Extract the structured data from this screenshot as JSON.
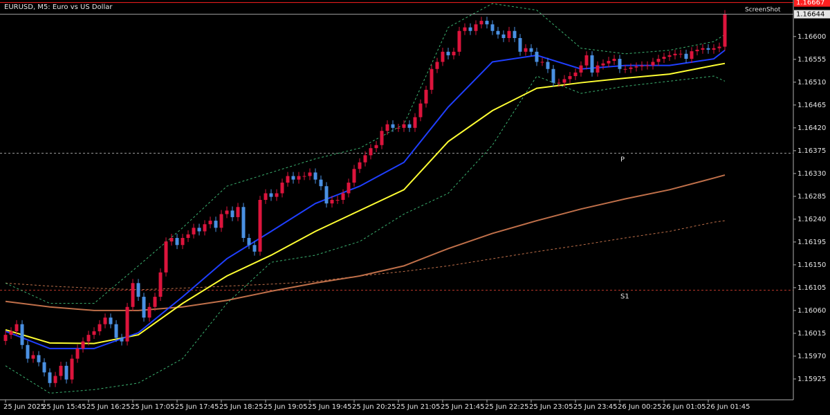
{
  "chart_data": {
    "type": "candlestick",
    "title": "EURUSD, M5:  Euro vs US Dollar",
    "watermark": "ScreenShot",
    "up_color": "#dc143c",
    "down_color": "#4a90e2",
    "ylim": [
      1.15884,
      1.16672
    ],
    "yticks": [
      {
        "value": 1.166,
        "label": "1.16600"
      },
      1.16555,
      {
        "value": 1.1651,
        "label": "1.16510"
      },
      1.16465,
      {
        "value": 1.1642,
        "label": "1.16420"
      },
      1.16375,
      {
        "value": 1.1633,
        "label": "1.16330"
      },
      1.16285,
      {
        "value": 1.1624,
        "label": "1.16240"
      },
      1.16195,
      {
        "value": 1.1615,
        "label": "1.16150"
      },
      1.16105,
      {
        "value": 1.1606,
        "label": "1.16060"
      },
      1.16015,
      {
        "value": 1.1597,
        "label": "1.15970"
      },
      1.15925
    ],
    "last_price": 1.16644,
    "ask_price": 1.16667,
    "levels": [
      {
        "label": "P",
        "value": 1.1637,
        "color": "#9a9a9a"
      },
      {
        "label": "S1",
        "value": 1.161,
        "color": "#c0392b"
      }
    ],
    "categories": [
      "25 Jun 2025",
      null,
      null,
      null,
      null,
      null,
      null,
      "25 Jun 15:45",
      null,
      null,
      null,
      null,
      null,
      null,
      null,
      "25 Jun 16:25",
      null,
      null,
      null,
      null,
      null,
      null,
      null,
      "25 Jun 17:05",
      null,
      null,
      null,
      null,
      null,
      null,
      null,
      "25 Jun 17:45",
      null,
      null,
      null,
      null,
      null,
      null,
      null,
      "25 Jun 18:25",
      null,
      null,
      null,
      null,
      null,
      null,
      null,
      "25 Jun 19:05",
      null,
      null,
      null,
      null,
      null,
      null,
      null,
      "25 Jun 19:45",
      null,
      null,
      null,
      null,
      null,
      null,
      null,
      "25 Jun 20:25",
      null,
      null,
      null,
      null,
      null,
      null,
      null,
      "25 Jun 21:05",
      null,
      null,
      null,
      null,
      null,
      null,
      null,
      "25 Jun 21:45",
      null,
      null,
      null,
      null,
      null,
      null,
      null,
      "25 Jun 22:25",
      null,
      null,
      null,
      null,
      null,
      null,
      null,
      "25 Jun 23:05",
      null,
      null,
      null,
      null,
      null,
      null,
      null,
      "25 Jun 23:45",
      null,
      null,
      null,
      null,
      null,
      null,
      null,
      "26 Jun 00:25",
      null,
      null,
      null,
      null,
      null,
      null,
      null,
      "26 Jun 01:05",
      null,
      null,
      null,
      null,
      null,
      null,
      null,
      "26 Jun 01:45",
      null,
      null,
      null
    ],
    "open": [
      1.16,
      1.16012,
      1.16019,
      1.16033,
      1.15992,
      1.15965,
      1.15972,
      1.15958,
      1.15938,
      1.15917,
      1.15931,
      1.15951,
      1.15924,
      1.15965,
      1.15985,
      1.15999,
      1.16012,
      1.16019,
      1.16033,
      1.16046,
      1.16033,
      1.16006,
      1.15999,
      1.16067,
      1.16114,
      1.16087,
      1.16046,
      1.16067,
      1.16087,
      1.16135,
      1.16196,
      1.16203,
      1.16189,
      1.16203,
      1.1621,
      1.16223,
      1.16216,
      1.1623,
      1.16237,
      1.16223,
      1.1625,
      1.16257,
      1.16244,
      1.16264,
      1.16203,
      1.16189,
      1.16176,
      1.16278,
      1.16291,
      1.16284,
      1.16291,
      1.16312,
      1.16325,
      1.16318,
      1.16325,
      1.16325,
      1.16332,
      1.16318,
      1.16305,
      1.16271,
      1.16278,
      1.16278,
      1.16291,
      1.16312,
      1.16339,
      1.16352,
      1.16366,
      1.1638,
      1.16386,
      1.16414,
      1.16427,
      1.1642,
      1.1642,
      1.16427,
      1.1642,
      1.16441,
      1.16468,
      1.16495,
      1.16536,
      1.1655,
      1.1657,
      1.16563,
      1.1657,
      1.16611,
      1.16618,
      1.16611,
      1.16624,
      1.16631,
      1.16624,
      1.16611,
      1.16604,
      1.16597,
      1.16611,
      1.16597,
      1.1657,
      1.16577,
      1.1657,
      1.1655,
      1.1655,
      1.16536,
      1.16509,
      1.16509,
      1.16516,
      1.16522,
      1.16529,
      1.16543,
      1.16563,
      1.16529,
      1.16543,
      1.16547,
      1.16552,
      1.16556,
      1.16536,
      1.16536,
      1.16539,
      1.16541,
      1.16543,
      1.16543,
      1.1655,
      1.16556,
      1.1656,
      1.16563,
      1.16566,
      1.16566,
      1.16556,
      1.16571,
      1.16574,
      1.16577,
      1.16574,
      1.16577,
      1.1658
    ],
    "high": [
      1.1602,
      1.16027,
      1.16041,
      1.16041,
      1.16,
      1.1598,
      1.1598,
      1.15966,
      1.15946,
      1.15939,
      1.15959,
      1.15959,
      1.15973,
      1.15993,
      1.16007,
      1.1602,
      1.16027,
      1.16041,
      1.16054,
      1.16054,
      1.16041,
      1.16014,
      1.16075,
      1.16122,
      1.16122,
      1.16095,
      1.16075,
      1.16095,
      1.16143,
      1.16204,
      1.16211,
      1.16211,
      1.16211,
      1.16218,
      1.16231,
      1.16231,
      1.16238,
      1.16245,
      1.16245,
      1.16258,
      1.16265,
      1.16265,
      1.16272,
      1.16272,
      1.16211,
      1.16197,
      1.16286,
      1.16299,
      1.16299,
      1.16299,
      1.1632,
      1.16333,
      1.16333,
      1.16333,
      1.16333,
      1.1634,
      1.1634,
      1.16326,
      1.16313,
      1.16286,
      1.16286,
      1.16299,
      1.1632,
      1.16347,
      1.1636,
      1.16374,
      1.16388,
      1.16394,
      1.16422,
      1.16435,
      1.16435,
      1.16428,
      1.16435,
      1.16435,
      1.16449,
      1.16476,
      1.16503,
      1.16544,
      1.16558,
      1.16578,
      1.16578,
      1.16578,
      1.16619,
      1.16626,
      1.16626,
      1.16632,
      1.16639,
      1.16639,
      1.16632,
      1.16619,
      1.16612,
      1.16619,
      1.16619,
      1.16605,
      1.16585,
      1.16585,
      1.16578,
      1.16558,
      1.16558,
      1.16544,
      1.16517,
      1.16524,
      1.1653,
      1.16537,
      1.16551,
      1.16571,
      1.16571,
      1.16551,
      1.16555,
      1.1656,
      1.16564,
      1.16564,
      1.16544,
      1.16547,
      1.16549,
      1.16551,
      1.16551,
      1.16558,
      1.16564,
      1.16568,
      1.16571,
      1.16574,
      1.16574,
      1.16574,
      1.16579,
      1.16582,
      1.16585,
      1.16585,
      1.16585,
      1.16588,
      1.16652
    ],
    "low": [
      1.15992,
      1.16004,
      1.16011,
      1.15984,
      1.15957,
      1.15957,
      1.1595,
      1.1593,
      1.15909,
      1.15909,
      1.15923,
      1.15916,
      1.15916,
      1.15957,
      1.15977,
      1.15991,
      1.16004,
      1.16011,
      1.16025,
      1.16025,
      1.15998,
      1.15991,
      1.15991,
      1.16059,
      1.16079,
      1.16038,
      1.16038,
      1.16059,
      1.16079,
      1.16127,
      1.16188,
      1.16181,
      1.16181,
      1.16195,
      1.16202,
      1.16208,
      1.16208,
      1.16222,
      1.16215,
      1.16215,
      1.16242,
      1.16236,
      1.16236,
      1.16195,
      1.16181,
      1.16168,
      1.16168,
      1.1627,
      1.16276,
      1.16276,
      1.16283,
      1.16304,
      1.1631,
      1.1631,
      1.16317,
      1.16317,
      1.1631,
      1.16297,
      1.16263,
      1.16263,
      1.1627,
      1.1627,
      1.16283,
      1.16304,
      1.16331,
      1.16344,
      1.16358,
      1.16372,
      1.16378,
      1.16406,
      1.16412,
      1.16412,
      1.16412,
      1.16412,
      1.16412,
      1.16433,
      1.1646,
      1.16487,
      1.16528,
      1.16542,
      1.16555,
      1.16555,
      1.16562,
      1.16603,
      1.16603,
      1.16603,
      1.16616,
      1.16616,
      1.16603,
      1.16596,
      1.16589,
      1.16589,
      1.16589,
      1.16562,
      1.16562,
      1.16562,
      1.16542,
      1.16542,
      1.16528,
      1.16501,
      1.16501,
      1.16501,
      1.16508,
      1.16514,
      1.16521,
      1.16535,
      1.16521,
      1.16521,
      1.16535,
      1.16539,
      1.16544,
      1.16528,
      1.16528,
      1.16528,
      1.16531,
      1.16533,
      1.16535,
      1.16535,
      1.16542,
      1.16548,
      1.16552,
      1.16555,
      1.16558,
      1.16548,
      1.16548,
      1.16563,
      1.16566,
      1.16566,
      1.16566,
      1.16569,
      1.16572
    ],
    "close": [
      1.16012,
      1.16019,
      1.16033,
      1.15992,
      1.15965,
      1.15972,
      1.15958,
      1.15938,
      1.15917,
      1.15931,
      1.15951,
      1.15924,
      1.15965,
      1.15985,
      1.15999,
      1.16012,
      1.16019,
      1.16033,
      1.16046,
      1.16033,
      1.16006,
      1.15999,
      1.16067,
      1.16114,
      1.16087,
      1.16046,
      1.16067,
      1.16087,
      1.16135,
      1.16196,
      1.16203,
      1.16189,
      1.16203,
      1.1621,
      1.16223,
      1.16216,
      1.1623,
      1.16237,
      1.16223,
      1.1625,
      1.16257,
      1.16244,
      1.16264,
      1.16203,
      1.16189,
      1.16176,
      1.16278,
      1.16291,
      1.16284,
      1.16291,
      1.16312,
      1.16325,
      1.16318,
      1.16325,
      1.16325,
      1.16332,
      1.16318,
      1.16305,
      1.16271,
      1.16278,
      1.16278,
      1.16291,
      1.16312,
      1.16339,
      1.16352,
      1.16366,
      1.1638,
      1.16386,
      1.16414,
      1.16427,
      1.1642,
      1.1642,
      1.16427,
      1.1642,
      1.16441,
      1.16468,
      1.16495,
      1.16536,
      1.1655,
      1.1657,
      1.16563,
      1.1657,
      1.16611,
      1.16618,
      1.16611,
      1.16624,
      1.16631,
      1.16624,
      1.16611,
      1.16604,
      1.16597,
      1.16611,
      1.16597,
      1.1657,
      1.16577,
      1.1657,
      1.1655,
      1.1655,
      1.16536,
      1.16509,
      1.16509,
      1.16516,
      1.16522,
      1.16529,
      1.16543,
      1.16563,
      1.16529,
      1.16543,
      1.16547,
      1.16552,
      1.16556,
      1.16536,
      1.16536,
      1.16539,
      1.16541,
      1.16543,
      1.16543,
      1.1655,
      1.16556,
      1.1656,
      1.16563,
      1.16566,
      1.16566,
      1.16556,
      1.16571,
      1.16574,
      1.16577,
      1.16574,
      1.16577,
      1.1658,
      1.16644
    ],
    "line_x": [
      0,
      8,
      16,
      24,
      32,
      40,
      48,
      56,
      64,
      72,
      80,
      88,
      96,
      104,
      112,
      120,
      128,
      130
    ],
    "lines": [
      {
        "color": "#c0704a",
        "dash": true,
        "values": [
          1.16114,
          1.16108,
          1.16104,
          1.16101,
          1.16104,
          1.16108,
          1.16112,
          1.16117,
          1.16128,
          1.16137,
          1.16148,
          1.16162,
          1.16176,
          1.16189,
          1.16203,
          1.16216,
          1.16234,
          1.16237
        ]
      },
      {
        "color": "#c0704a",
        "dash": false,
        "values": [
          1.16078,
          1.16067,
          1.1606,
          1.1606,
          1.16067,
          1.1608,
          1.16098,
          1.16114,
          1.16128,
          1.16148,
          1.16182,
          1.16212,
          1.16237,
          1.1626,
          1.1628,
          1.16298,
          1.16321,
          1.16327
        ]
      },
      {
        "color": "#3cb371",
        "dash": true,
        "values": [
          1.16114,
          1.16074,
          1.16074,
          1.16148,
          1.16223,
          1.16305,
          1.16332,
          1.16359,
          1.1638,
          1.16427,
          1.16618,
          1.16665,
          1.16652,
          1.16577,
          1.16566,
          1.16573,
          1.1659,
          1.16604
        ]
      },
      {
        "color": "#3cb371",
        "dash": true,
        "values": [
          1.15951,
          1.15897,
          1.15904,
          1.15917,
          1.15965,
          1.16074,
          1.16155,
          1.16169,
          1.16196,
          1.1625,
          1.16291,
          1.16386,
          1.16522,
          1.16488,
          1.16502,
          1.16512,
          1.16522,
          1.16512
        ]
      },
      {
        "color": "#ffff33",
        "dash": false,
        "values": [
          1.16022,
          1.15996,
          1.15995,
          1.16012,
          1.16074,
          1.16128,
          1.16169,
          1.16216,
          1.16257,
          1.16298,
          1.16393,
          1.16454,
          1.16498,
          1.16509,
          1.16518,
          1.16526,
          1.16543,
          1.16547
        ]
      },
      {
        "color": "#1f3fff",
        "dash": false,
        "values": [
          1.16019,
          1.15985,
          1.15985,
          1.16016,
          1.16087,
          1.16162,
          1.16216,
          1.16271,
          1.16305,
          1.16352,
          1.16461,
          1.1655,
          1.16563,
          1.16536,
          1.16543,
          1.16543,
          1.16556,
          1.16573
        ]
      }
    ]
  }
}
